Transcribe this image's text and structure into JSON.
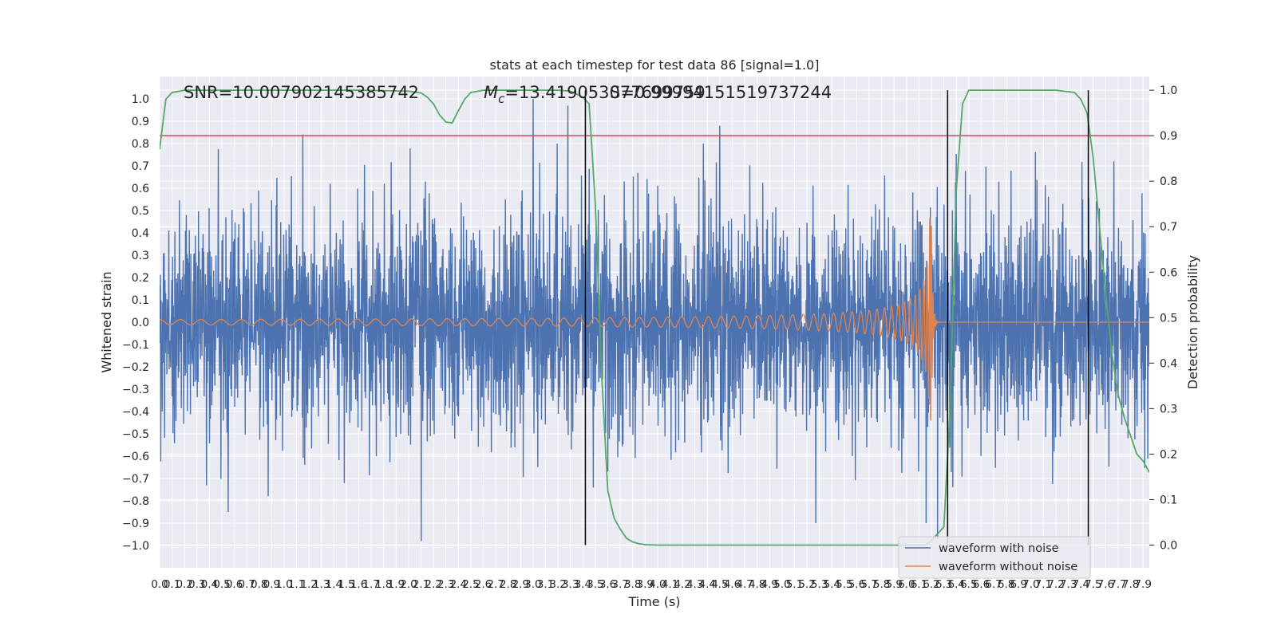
{
  "chart_data": {
    "type": "line",
    "title": "stats at each timestep for test data 86 [signal=1.0]",
    "xlabel": "Time (s)",
    "ylabel_left": "Whitened strain",
    "ylabel_right": "Detection probability",
    "xlim": [
      0.0,
      7.95
    ],
    "ylim_left": [
      -1.1,
      1.1
    ],
    "ylim_right": [
      -0.05,
      1.03
    ],
    "x_tick_labels": [
      "0.0",
      "0.1",
      "0.2",
      "0.3",
      "0.4",
      "0.5",
      "0.6",
      "0.7",
      "0.8",
      "0.9",
      "1.0",
      "1.1",
      "1.2",
      "1.3",
      "1.4",
      "1.5",
      "1.6",
      "1.7",
      "1.8",
      "1.9",
      "2.0",
      "2.1",
      "2.2",
      "2.3",
      "2.4",
      "2.5",
      "2.6",
      "2.7",
      "2.8",
      "2.9",
      "3.0",
      "3.1",
      "3.2",
      "3.3",
      "3.4",
      "3.5",
      "3.6",
      "3.7",
      "3.8",
      "3.9",
      "4.0",
      "4.1",
      "4.2",
      "4.3",
      "4.4",
      "4.5",
      "4.6",
      "4.7",
      "4.8",
      "4.9",
      "5.0",
      "5.1",
      "5.2",
      "5.3",
      "5.4",
      "5.5",
      "5.6",
      "5.7",
      "5.8",
      "5.9",
      "6.0",
      "6.1",
      "6.2",
      "6.3",
      "6.4",
      "6.5",
      "6.6",
      "6.7",
      "6.8",
      "6.9",
      "7.0",
      "7.1",
      "7.2",
      "7.3",
      "7.4",
      "7.5",
      "7.6",
      "7.7",
      "7.8",
      "7.9"
    ],
    "y_left_tick_labels": [
      "1.0",
      "0.9",
      "0.8",
      "0.7",
      "0.6",
      "0.5",
      "0.4",
      "0.3",
      "0.2",
      "0.1",
      "0.0",
      "−0.1",
      "−0.2",
      "−0.3",
      "−0.4",
      "−0.5",
      "−0.6",
      "−0.7",
      "−0.8",
      "−0.9",
      "−1.0"
    ],
    "y_right_tick_labels": [
      "1.0",
      "0.9",
      "0.8",
      "0.7",
      "0.6",
      "0.5",
      "0.4",
      "0.3",
      "0.2",
      "0.1",
      "0.0"
    ],
    "annotations": {
      "snr": "SNR=10.007902145385742",
      "mc_prefix": "M",
      "mc_sub": "c",
      "mc_value": "=13.419053077699759",
      "overlap_value": "S=0.99994151519737244"
    },
    "threshold": {
      "value": 0.9,
      "axis": "right",
      "color": "#c44e52"
    },
    "vertical_lines": [
      3.42,
      6.33,
      7.46
    ],
    "legend": {
      "placement": "lower-right",
      "entries": [
        "waveform with noise",
        "waveform without noise"
      ]
    },
    "series": [
      {
        "name": "waveform with noise",
        "axis": "left",
        "color": "#4c72b0",
        "kind": "noise",
        "approx_range": [
          -1.0,
          1.0
        ],
        "typical_amplitude": 0.45,
        "peaks": [
          [
            1.15,
            0.84
          ],
          [
            3.0,
            1.0
          ],
          [
            3.28,
            0.97
          ],
          [
            4.5,
            0.88
          ],
          [
            2.1,
            -0.98
          ],
          [
            0.55,
            -0.85
          ],
          [
            6.25,
            -0.97
          ]
        ]
      },
      {
        "name": "waveform without noise",
        "axis": "left",
        "color": "#dd8452",
        "kind": "chirp",
        "x_start": 0.0,
        "merger_time": 6.2,
        "peak_amplitude": 0.47,
        "early_amplitude": 0.012
      },
      {
        "name": "detection probability",
        "axis": "right",
        "color": "#55a868",
        "x": [
          0.0,
          0.05,
          0.1,
          0.2,
          0.4,
          0.8,
          1.2,
          1.6,
          2.0,
          2.1,
          2.15,
          2.2,
          2.25,
          2.3,
          2.35,
          2.4,
          2.45,
          2.5,
          2.6,
          2.8,
          3.0,
          3.2,
          3.3,
          3.4,
          3.45,
          3.5,
          3.55,
          3.6,
          3.65,
          3.7,
          3.75,
          3.8,
          3.85,
          3.9,
          4.0,
          4.2,
          5.0,
          6.0,
          6.15,
          6.2,
          6.25,
          6.3,
          6.35,
          6.4,
          6.45,
          6.5,
          6.6,
          7.0,
          7.2,
          7.35,
          7.4,
          7.45,
          7.5,
          7.55,
          7.6,
          7.65,
          7.7,
          7.75,
          7.8,
          7.85,
          7.9,
          7.95
        ],
        "values": [
          0.87,
          0.98,
          0.995,
          1.0,
          1.0,
          1.0,
          1.0,
          1.0,
          0.998,
          0.994,
          0.985,
          0.97,
          0.945,
          0.93,
          0.928,
          0.955,
          0.98,
          0.995,
          1.0,
          1.0,
          1.0,
          1.0,
          0.998,
          0.985,
          0.97,
          0.75,
          0.38,
          0.12,
          0.06,
          0.035,
          0.015,
          0.007,
          0.003,
          0.001,
          0.0,
          0.0,
          0.0,
          0.0,
          0.0,
          0.01,
          0.025,
          0.04,
          0.3,
          0.78,
          0.97,
          1.0,
          1.0,
          1.0,
          1.0,
          0.995,
          0.98,
          0.95,
          0.85,
          0.7,
          0.55,
          0.42,
          0.33,
          0.28,
          0.24,
          0.2,
          0.185,
          0.16
        ]
      }
    ]
  }
}
